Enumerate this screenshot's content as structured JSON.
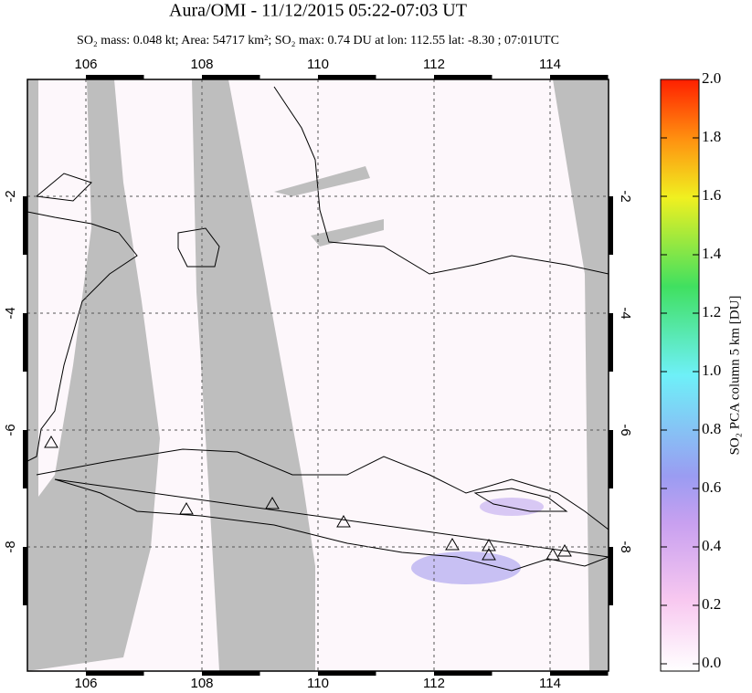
{
  "title": "Aura/OMI - 11/12/2015 05:22-07:03 UT",
  "subtitle": "SO₂ mass: 0.048 kt; Area: 54717 km²; SO₂ max: 0.74 DU at lon: 112.55 lat: -8.30 ; 07:01UTC",
  "map": {
    "lon_ticks": [
      106,
      108,
      110,
      112,
      114
    ],
    "lat_ticks": [
      -2,
      -4,
      -6,
      -8
    ]
  },
  "colorbar": {
    "label": "SO₂ PCA column 5 km [DU]",
    "ticks": [
      {
        "value": 0,
        "label": "0.0"
      },
      {
        "value": 0.2,
        "label": "0.2"
      },
      {
        "value": 0.4,
        "label": "0.4"
      },
      {
        "value": 0.6,
        "label": "0.6"
      },
      {
        "value": 0.8,
        "label": "0.8"
      },
      {
        "value": 1,
        "label": "1.0"
      },
      {
        "value": 1.2,
        "label": "1.2"
      },
      {
        "value": 1.4,
        "label": "1.4"
      },
      {
        "value": 1.6,
        "label": "1.6"
      },
      {
        "value": 1.8,
        "label": "1.8"
      },
      {
        "value": 2,
        "label": "2.0"
      }
    ]
  }
}
